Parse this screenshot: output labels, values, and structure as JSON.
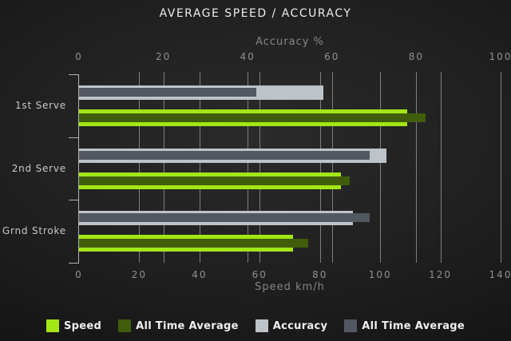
{
  "chart_data": {
    "type": "bar",
    "orientation": "horizontal",
    "title": "AVERAGE SPEED / ACCURACY",
    "categories": [
      "1st Serve",
      "2nd Serve",
      "Grnd Stroke"
    ],
    "axes": {
      "top": {
        "label": "Accuracy %",
        "min": 0,
        "max": 100,
        "ticks": [
          0,
          20,
          40,
          60,
          80,
          100
        ]
      },
      "bottom": {
        "label": "Speed km/h",
        "min": 0,
        "max": 140,
        "ticks": [
          0,
          20,
          40,
          60,
          80,
          100,
          120,
          140
        ]
      }
    },
    "series": [
      {
        "name": "Speed",
        "axis": "bottom",
        "color": "#a3e614",
        "values": [
          109,
          87,
          71
        ]
      },
      {
        "name": "All Time Average",
        "axis": "bottom",
        "color": "#405d0c",
        "values": [
          115,
          90,
          76
        ]
      },
      {
        "name": "Accuracy",
        "axis": "top",
        "color": "#bdc3c7",
        "values": [
          58,
          73,
          65
        ]
      },
      {
        "name": "All Time Average",
        "axis": "top",
        "color": "#515861",
        "values": [
          42,
          69,
          69
        ]
      }
    ],
    "legend_position": "bottom",
    "grid": true,
    "colors": {
      "background": "#1e1e1e",
      "gridline": "#7e7e7e",
      "axis": "#b2b2b2",
      "speed": "#a3e614",
      "speed_all_time": "#405d0c",
      "accuracy": "#bdc3c7",
      "accuracy_all_time": "#515861"
    }
  }
}
